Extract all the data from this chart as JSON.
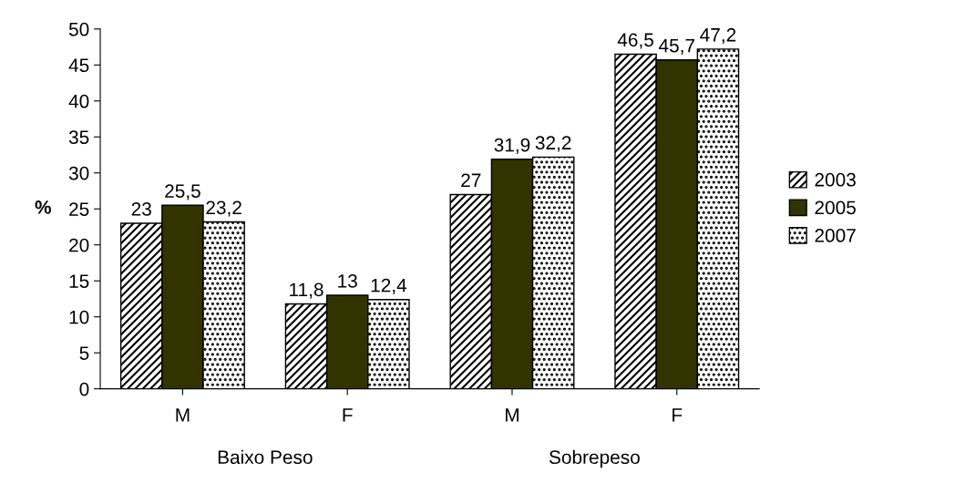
{
  "chart_data": {
    "type": "bar",
    "ylabel": "%",
    "categories": [
      "M",
      "F",
      "M",
      "F"
    ],
    "series": [
      {
        "name": "2003",
        "color": "#000000",
        "values": [
          23,
          11.8,
          27,
          46.5
        ],
        "value_labels": [
          "23",
          "11,8",
          "27",
          "46,5"
        ]
      },
      {
        "name": "2005",
        "color": "#333300",
        "values": [
          25.5,
          13,
          31.9,
          45.7
        ],
        "value_labels": [
          "25,5",
          "13",
          "31,9",
          "45,7"
        ]
      },
      {
        "name": "2007",
        "color": "#000000",
        "values": [
          23.2,
          12.4,
          32.2,
          47.2
        ],
        "value_labels": [
          "23,2",
          "12,4",
          "32,2",
          "47,2"
        ]
      }
    ],
    "annotations": [
      "Baixo Peso",
      "Sobrepeso"
    ],
    "ylim": [
      0,
      50
    ],
    "yticks": [
      0,
      5,
      10,
      15,
      20,
      25,
      30,
      35,
      40,
      45,
      50
    ],
    "legend": "right",
    "grid": false
  }
}
